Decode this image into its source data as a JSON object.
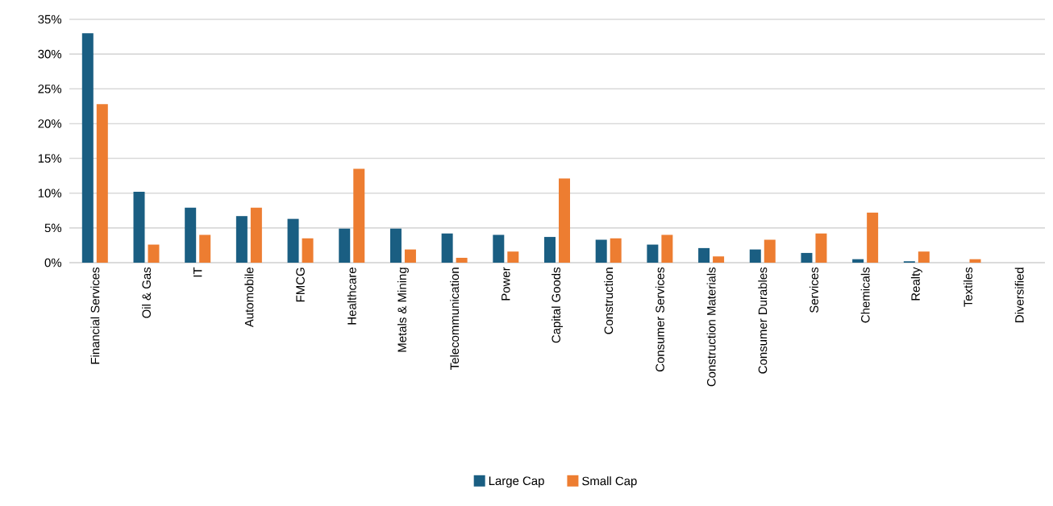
{
  "chart_data": {
    "type": "bar",
    "categories": [
      "Financial Services",
      "Oil & Gas",
      "IT",
      "Automobile",
      "FMCG",
      "Healthcare",
      "Metals & Mining",
      "Telecommunication",
      "Power",
      "Capital Goods",
      "Construction",
      "Consumer Services",
      "Construction Materials",
      "Consumer Durables",
      "Services",
      "Chemicals",
      "Realty",
      "Textiles",
      "Diversified"
    ],
    "series": [
      {
        "name": "Large Cap",
        "color": "#1a5e82",
        "values": [
          33.0,
          10.2,
          7.9,
          6.7,
          6.3,
          4.9,
          4.9,
          4.2,
          4.0,
          3.7,
          3.3,
          2.6,
          2.1,
          1.9,
          1.4,
          0.5,
          0.2,
          0,
          0
        ]
      },
      {
        "name": "Small Cap",
        "color": "#ed7d31",
        "values": [
          22.8,
          2.6,
          4.0,
          7.9,
          3.5,
          13.5,
          1.9,
          0.7,
          1.6,
          12.1,
          3.5,
          4.0,
          0.9,
          3.3,
          4.2,
          7.2,
          1.6,
          0.5,
          0
        ]
      }
    ],
    "ylim": [
      0,
      35
    ],
    "yticks": [
      {
        "value": 0,
        "label": "0%"
      },
      {
        "value": 5,
        "label": "5%"
      },
      {
        "value": 10,
        "label": "10%"
      },
      {
        "value": 15,
        "label": "15%"
      },
      {
        "value": 20,
        "label": "20%"
      },
      {
        "value": 25,
        "label": "25%"
      },
      {
        "value": 30,
        "label": "30%"
      },
      {
        "value": 35,
        "label": "35%"
      }
    ],
    "grid": "y",
    "legend": "bottom"
  }
}
